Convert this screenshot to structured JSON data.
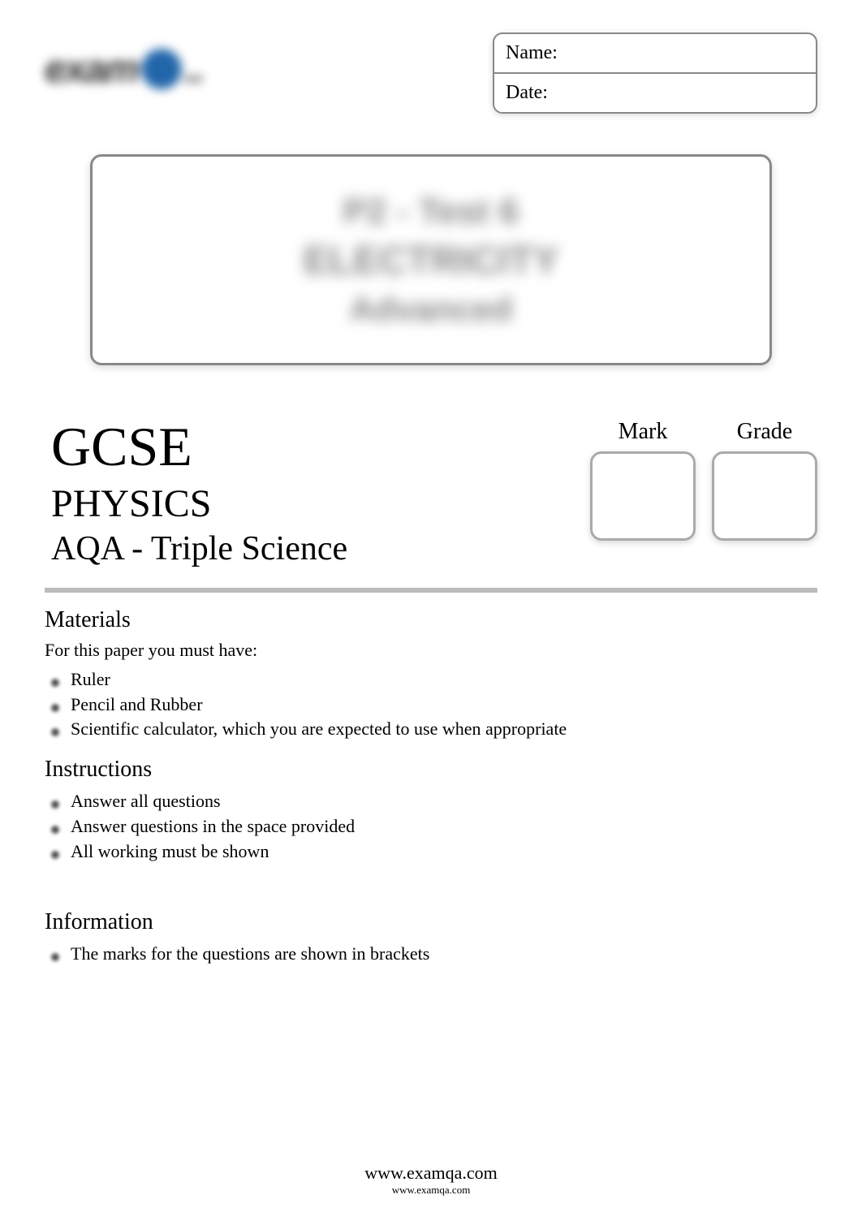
{
  "header": {
    "logo_text": "exam",
    "name_label": "Name:",
    "date_label": "Date:"
  },
  "title_box": {
    "line1": "P2 - Test 6",
    "line2": "ELECTRICITY",
    "line3": "Advanced"
  },
  "course": {
    "level": "GCSE",
    "subject": "PHYSICS",
    "board": "AQA - Triple Science"
  },
  "score": {
    "mark_label": "Mark",
    "grade_label": "Grade"
  },
  "materials": {
    "title": "Materials",
    "subtitle": "For this paper you must have:",
    "items": [
      "Ruler",
      "Pencil and Rubber",
      "Scientific calculator, which you are expected to use when appropriate"
    ]
  },
  "instructions": {
    "title": "Instructions",
    "items": [
      "Answer all questions",
      "Answer questions in the space provided",
      "All working must be shown"
    ]
  },
  "information": {
    "title": "Information",
    "items": [
      "The marks for the questions are shown in brackets"
    ]
  },
  "footer": {
    "url_main": "www.examqa.com",
    "url_sub": "www.examqa.com"
  },
  "colors": {
    "background": "#ffffff",
    "text": "#000000",
    "border": "#888888",
    "divider": "#bbbbbb",
    "blur_text": "#888888",
    "logo_accent": "#2266aa"
  }
}
